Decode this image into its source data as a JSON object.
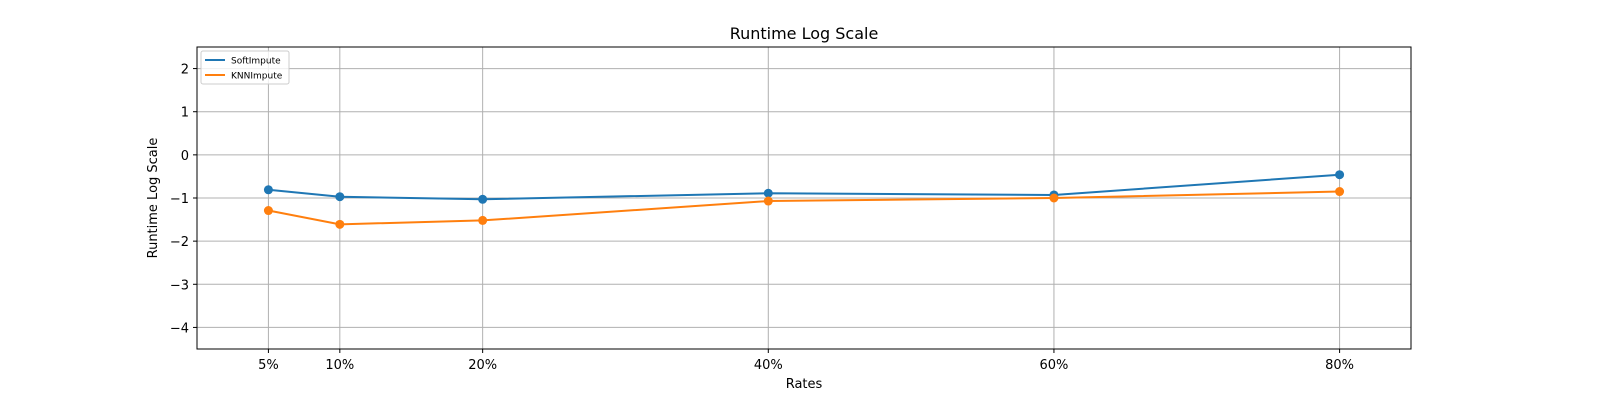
{
  "chart_data": {
    "type": "line",
    "title": "Runtime Log Scale",
    "xlabel": "Rates",
    "ylabel": "Runtime Log Scale",
    "x": [
      5,
      10,
      20,
      40,
      60,
      80
    ],
    "x_tick_labels": [
      "5%",
      "10%",
      "20%",
      "40%",
      "60%",
      "80%"
    ],
    "xlim": [
      0,
      85
    ],
    "ylim": [
      -4.5,
      2.5
    ],
    "y_ticks": [
      -4,
      -3,
      -2,
      -1,
      0,
      1,
      2
    ],
    "y_tick_labels": [
      "−4",
      "−3",
      "−2",
      "−1",
      "0",
      "1",
      "2"
    ],
    "grid": true,
    "legend_position": "top-left",
    "series": [
      {
        "name": "SoftImpute",
        "color": "#1f77b4",
        "values": [
          -0.81,
          -0.97,
          -1.03,
          -0.89,
          -0.93,
          -0.46
        ]
      },
      {
        "name": "KNNImpute",
        "color": "#ff7f0e",
        "values": [
          -1.29,
          -1.61,
          -1.52,
          -1.07,
          -1.0,
          -0.85
        ]
      }
    ]
  }
}
